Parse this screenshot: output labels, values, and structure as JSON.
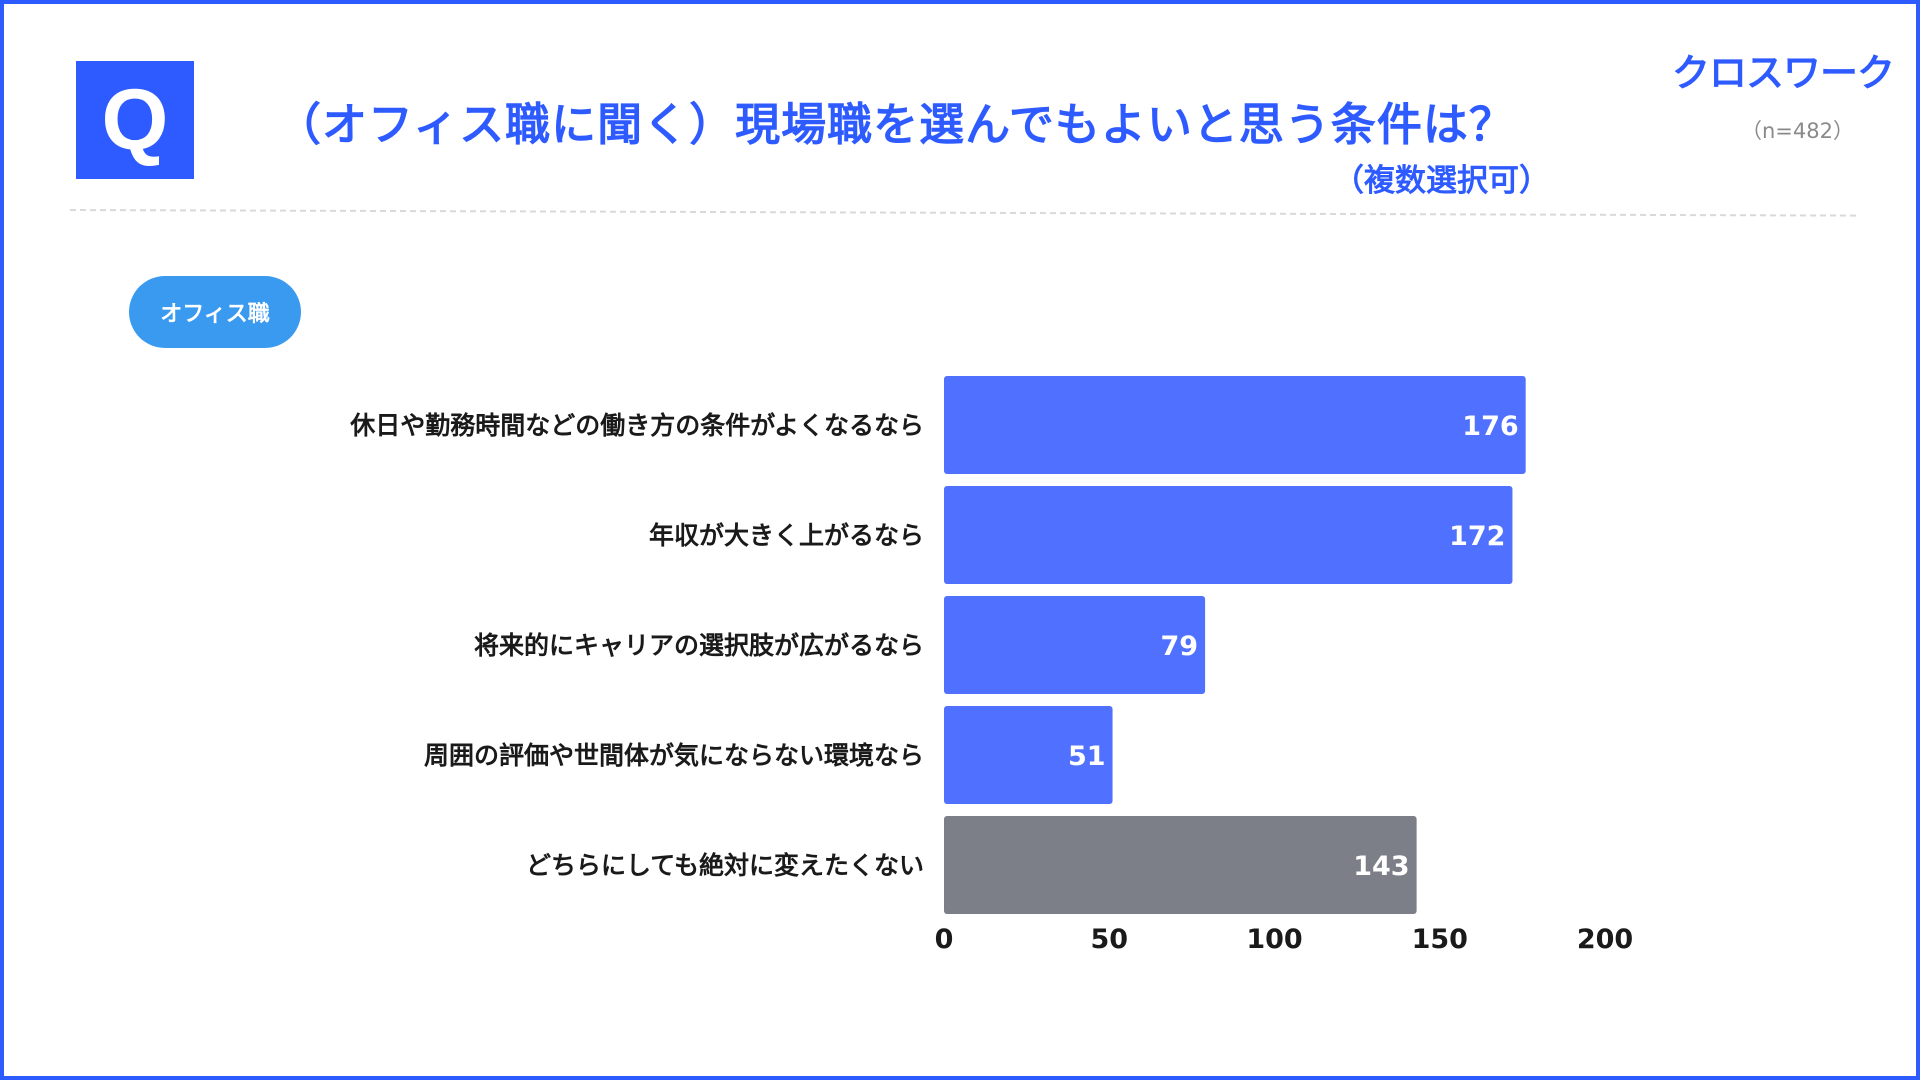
{
  "header": {
    "q_mark": "Q",
    "title": "（オフィス職に聞く）現場職を選んでもよいと思う条件は？",
    "subtitle": "（複数選択可）",
    "logo": "クロスワーク",
    "sample_size": "（n=482）"
  },
  "colors": {
    "accent": "#2e5bff",
    "bar": "#5071ff",
    "bar_highlight": "#7c7f87",
    "pill": "#3a9af0"
  },
  "chart_data": {
    "type": "bar",
    "orientation": "horizontal",
    "series_label": "オフィス職",
    "categories": [
      "休日や勤務時間などの働き方の条件がよくなるなら",
      "年収が大きく上がるなら",
      "将来的にキャリアの選択肢が広がるなら",
      "周囲の評価や世間体が気にならない環境なら",
      "どちらにしても絶対に変えたくない"
    ],
    "values": [
      176,
      172,
      79,
      51,
      143
    ],
    "highlight_index": 4,
    "xlim": [
      0,
      200
    ],
    "xticks": [
      0,
      50,
      100,
      150,
      200
    ],
    "xlabel": "",
    "ylabel": "",
    "grid": false,
    "legend": "none"
  }
}
